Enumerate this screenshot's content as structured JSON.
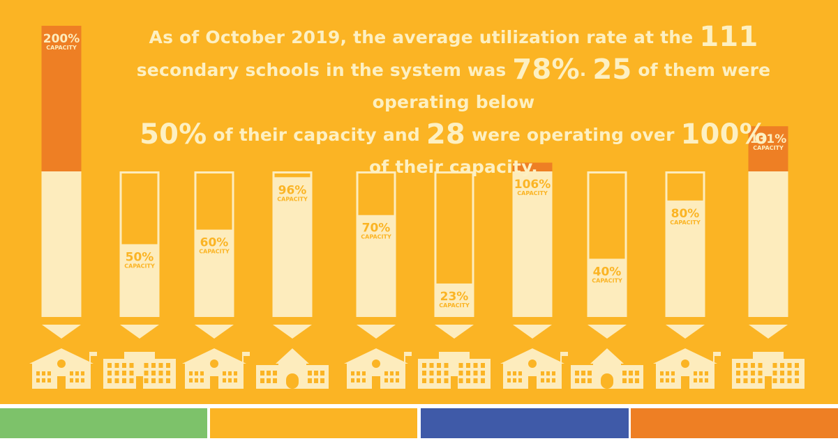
{
  "headline": {
    "p1": "As of October 2019, the average utilization rate at the ",
    "n1": "111",
    "p2": " secondary schools in the system was ",
    "n2": "78%",
    "p3": ". ",
    "n3": "25",
    "p4": " of them were operating below ",
    "n4": "50%",
    "p5": " of their capacity and ",
    "n5": "28",
    "p6": " were operating over ",
    "n6": "100%",
    "p7": " of their capacity."
  },
  "colors": {
    "background": "#fbb424",
    "bar_fill": "#fdecbd",
    "overflow": "#ee7f24",
    "label": "#fbb424",
    "label_on_overflow": "#fdecbd",
    "footer": [
      "#7dc26a",
      "#fbb424",
      "#3f5aa8",
      "#ee7f24"
    ]
  },
  "icons": [
    "school-building-clock-icon",
    "school-building-wide-icon",
    "school-building-clock-icon",
    "school-building-bell-icon",
    "school-building-clock-icon",
    "school-building-wide-icon",
    "school-building-clock-icon",
    "school-building-bell-icon",
    "school-building-clock-icon",
    "school-building-wide-icon"
  ],
  "chart_data": {
    "type": "bar",
    "unit_label": "CAPACITY",
    "values": [
      200,
      50,
      60,
      96,
      70,
      23,
      106,
      40,
      80,
      131
    ],
    "labels": [
      "200%",
      "50%",
      "60%",
      "96%",
      "70%",
      "23%",
      "106%",
      "40%",
      "80%",
      "131%"
    ]
  }
}
